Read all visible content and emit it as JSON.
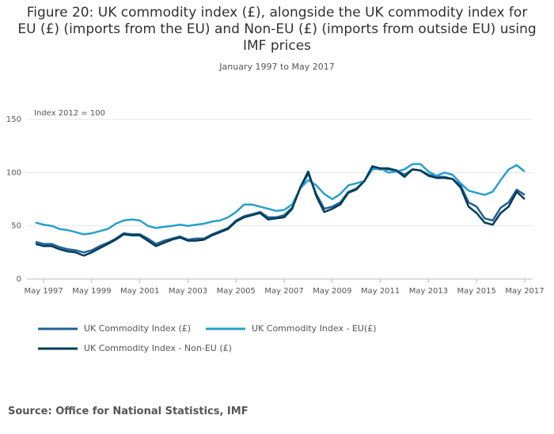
{
  "chart_data": {
    "type": "line",
    "title": "Figure 20: UK commodity index (£), alongside the UK commodity index for EU (£) (imports from the EU) and Non-EU (£) (imports from outside EU) using IMF prices",
    "subtitle": "January 1997 to May 2017",
    "y_label": "Index 2012 = 100",
    "source": "Source: Office for National Statistics, IMF",
    "x": [
      "1997-01",
      "1997-05",
      "1997-09",
      "1998-01",
      "1998-05",
      "1998-09",
      "1999-01",
      "1999-05",
      "1999-09",
      "2000-01",
      "2000-05",
      "2000-09",
      "2001-01",
      "2001-05",
      "2001-09",
      "2002-01",
      "2002-05",
      "2002-09",
      "2003-01",
      "2003-05",
      "2003-09",
      "2004-01",
      "2004-05",
      "2004-09",
      "2005-01",
      "2005-05",
      "2005-09",
      "2006-01",
      "2006-05",
      "2006-09",
      "2007-01",
      "2007-05",
      "2007-09",
      "2008-01",
      "2008-05",
      "2008-09",
      "2009-01",
      "2009-05",
      "2009-09",
      "2010-01",
      "2010-05",
      "2010-09",
      "2011-01",
      "2011-05",
      "2011-09",
      "2012-01",
      "2012-05",
      "2012-09",
      "2013-01",
      "2013-05",
      "2013-09",
      "2014-01",
      "2014-05",
      "2014-09",
      "2015-01",
      "2015-05",
      "2015-09",
      "2016-01",
      "2016-05",
      "2016-09",
      "2017-01",
      "2017-05"
    ],
    "xlim": [
      "1997-01",
      "2017-05"
    ],
    "xticks": [
      {
        "value": "1997-05",
        "label": "May 1997"
      },
      {
        "value": "1999-05",
        "label": "May 1999"
      },
      {
        "value": "2001-05",
        "label": "May 2001"
      },
      {
        "value": "2003-05",
        "label": "May 2003"
      },
      {
        "value": "2005-05",
        "label": "May 2005"
      },
      {
        "value": "2007-05",
        "label": "May 2007"
      },
      {
        "value": "2009-05",
        "label": "May 2009"
      },
      {
        "value": "2011-05",
        "label": "May 2011"
      },
      {
        "value": "2013-05",
        "label": "May 2013"
      },
      {
        "value": "2015-05",
        "label": "May 2015"
      },
      {
        "value": "2017-05",
        "label": "May 2017"
      }
    ],
    "ylim": [
      0,
      150
    ],
    "yticks": [
      0,
      50,
      100,
      150
    ],
    "grid": true,
    "series": [
      {
        "name": "UK Commodity Index (£)",
        "color": "#206095",
        "values": [
          35,
          33,
          33,
          30,
          28,
          27,
          25,
          27,
          31,
          34,
          38,
          43,
          42,
          42,
          38,
          33,
          36,
          38,
          40,
          37,
          38,
          38,
          42,
          45,
          48,
          55,
          59,
          61,
          63,
          58,
          58,
          60,
          67,
          85,
          99,
          80,
          66,
          68,
          72,
          82,
          85,
          92,
          104,
          103,
          103,
          102,
          98,
          103,
          102,
          98,
          96,
          96,
          94,
          88,
          72,
          68,
          57,
          55,
          67,
          72,
          84,
          79
        ]
      },
      {
        "name": "UK Commodity Index - EU(£)",
        "color": "#27a0cc",
        "values": [
          53,
          51,
          50,
          47,
          46,
          44,
          42,
          43,
          45,
          47,
          52,
          55,
          56,
          55,
          50,
          48,
          49,
          50,
          51,
          50,
          51,
          52,
          54,
          55,
          58,
          63,
          70,
          70,
          68,
          66,
          64,
          65,
          70,
          85,
          93,
          88,
          80,
          75,
          80,
          88,
          90,
          92,
          103,
          104,
          100,
          101,
          103,
          108,
          108,
          101,
          97,
          100,
          98,
          90,
          83,
          81,
          79,
          82,
          93,
          103,
          107,
          101
        ]
      },
      {
        "name": "UK Commodity Index - Non-EU (£)",
        "color": "#003c57",
        "values": [
          33,
          31,
          31,
          28,
          26,
          25,
          22,
          25,
          29,
          33,
          37,
          42,
          41,
          41,
          36,
          31,
          34,
          37,
          39,
          36,
          36,
          37,
          41,
          44,
          47,
          54,
          58,
          60,
          62,
          56,
          57,
          58,
          66,
          86,
          101,
          78,
          63,
          66,
          70,
          81,
          84,
          92,
          106,
          104,
          104,
          102,
          96,
          103,
          102,
          97,
          95,
          95,
          94,
          86,
          68,
          62,
          53,
          51,
          62,
          68,
          82,
          75
        ]
      }
    ]
  }
}
